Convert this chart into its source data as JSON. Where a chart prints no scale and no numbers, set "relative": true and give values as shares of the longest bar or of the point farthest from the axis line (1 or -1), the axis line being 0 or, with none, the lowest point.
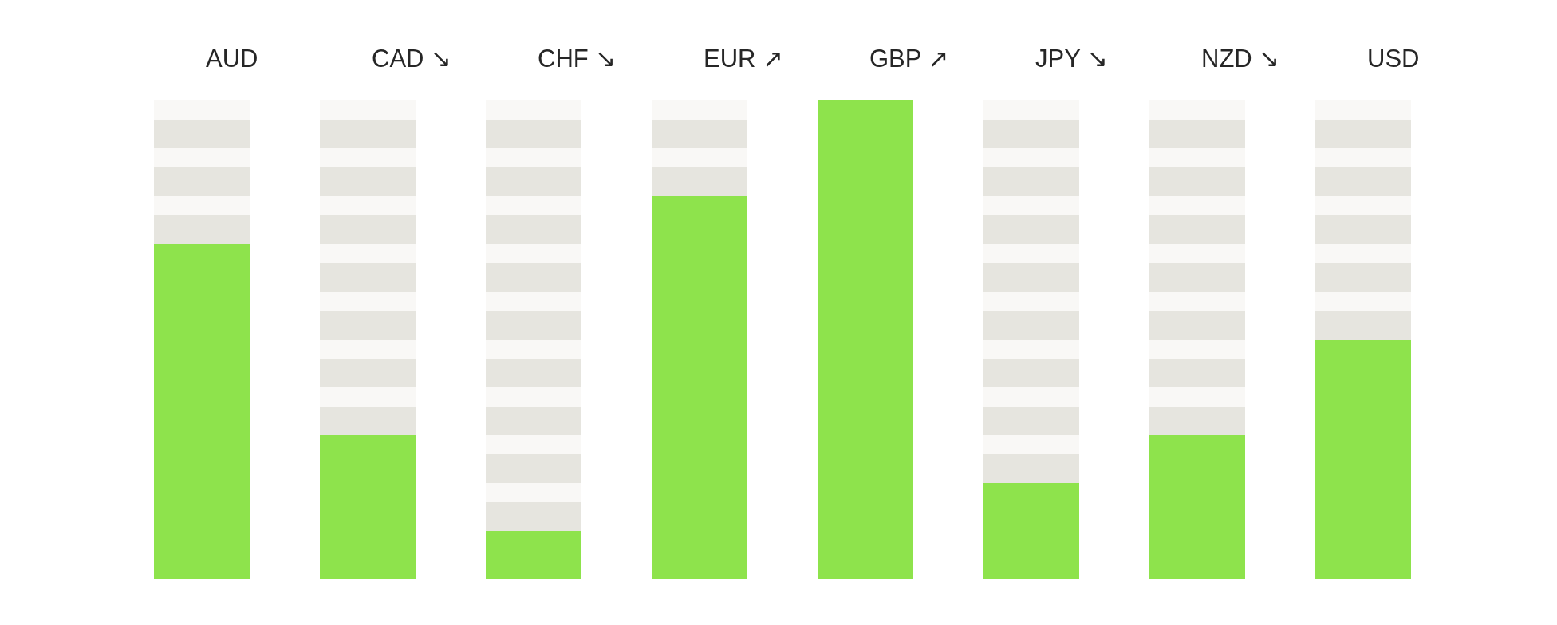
{
  "chart_data": {
    "type": "bar",
    "categories": [
      "AUD",
      "CAD ↘",
      "CHF ↘",
      "EUR ↗",
      "GBP ↗",
      "JPY ↘",
      "NZD ↘",
      "USD"
    ],
    "values": [
      0.7,
      0.3,
      0.1,
      0.8,
      1,
      0.2,
      0.3,
      0.5
    ],
    "color": "#8ee34c",
    "relative": true
  }
}
